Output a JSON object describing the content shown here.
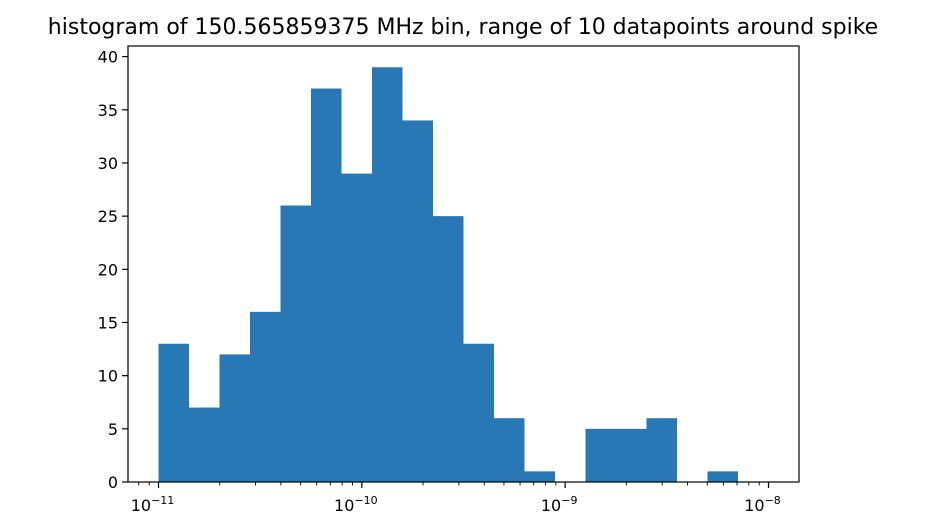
{
  "chart_data": {
    "type": "bar",
    "title": "histogram of 150.565859375 MHz bin, range of 10 datapoints around spike",
    "xlabel": "",
    "ylabel": "",
    "x_scale": "log",
    "bin_edges_log10": [
      -11.0,
      -10.85,
      -10.7,
      -10.55,
      -10.4,
      -10.25,
      -10.1,
      -9.95,
      -9.8,
      -9.65,
      -9.5,
      -9.35,
      -9.2,
      -9.05,
      -8.9,
      -8.75,
      -8.6,
      -8.45,
      -8.3,
      -8.15,
      -8.0
    ],
    "values": [
      13,
      7,
      12,
      16,
      26,
      37,
      29,
      39,
      34,
      25,
      13,
      6,
      1,
      0,
      5,
      5,
      6,
      0,
      1,
      0
    ],
    "ylim": [
      0,
      41
    ],
    "xlim_log10": [
      -11.15,
      -7.85
    ],
    "yticks": [
      "0",
      "5",
      "10",
      "15",
      "20",
      "25",
      "30",
      "35",
      "40"
    ],
    "xticks": [
      {
        "base": "10",
        "exp": "−11"
      },
      {
        "base": "10",
        "exp": "−10"
      },
      {
        "base": "10",
        "exp": "−9"
      },
      {
        "base": "10",
        "exp": "−8"
      }
    ],
    "bar_color": "#2878b5",
    "grid": false,
    "legend": "none"
  }
}
